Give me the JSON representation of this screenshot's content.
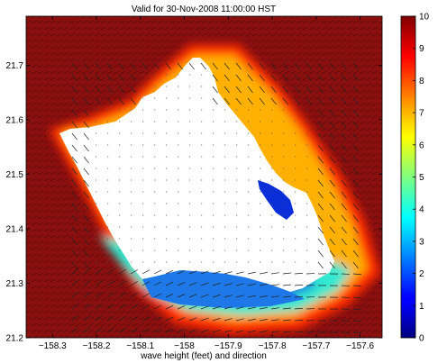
{
  "title": "Valid for 30-Nov-2008 11:00:00 HST",
  "xlabel": "wave height (feet) and direction",
  "x_ticks": [
    {
      "value": -158.3,
      "label": "−158.3"
    },
    {
      "value": -158.2,
      "label": "−158.2"
    },
    {
      "value": -158.1,
      "label": "−158.1"
    },
    {
      "value": -158.0,
      "label": "−158"
    },
    {
      "value": -157.9,
      "label": "−157.9"
    },
    {
      "value": -157.8,
      "label": "−157.8"
    },
    {
      "value": -157.7,
      "label": "−157.7"
    },
    {
      "value": -157.6,
      "label": "−157.6"
    }
  ],
  "y_ticks": [
    {
      "value": 21.2,
      "label": "21.2"
    },
    {
      "value": 21.3,
      "label": "21.3"
    },
    {
      "value": 21.4,
      "label": "21.4"
    },
    {
      "value": 21.5,
      "label": "21.5"
    },
    {
      "value": 21.6,
      "label": "21.6"
    },
    {
      "value": 21.7,
      "label": "21.7"
    }
  ],
  "xlim": [
    -158.36,
    -157.55
  ],
  "ylim": [
    21.2,
    21.79
  ],
  "colorbar": {
    "min": 0,
    "max": 10,
    "ticks": [
      {
        "value": 0,
        "label": "0"
      },
      {
        "value": 1,
        "label": "1"
      },
      {
        "value": 2,
        "label": "2"
      },
      {
        "value": 3,
        "label": "3"
      },
      {
        "value": 4,
        "label": "4"
      },
      {
        "value": 5,
        "label": "5"
      },
      {
        "value": 6,
        "label": "6"
      },
      {
        "value": 7,
        "label": "7"
      },
      {
        "value": 8,
        "label": "8"
      },
      {
        "value": 9,
        "label": "9"
      },
      {
        "value": 10,
        "label": "10"
      }
    ],
    "colormap": "jet"
  },
  "colors": {
    "deep_water": "#8a0f0f",
    "land": "#ffffff",
    "frame": "#000000"
  }
}
